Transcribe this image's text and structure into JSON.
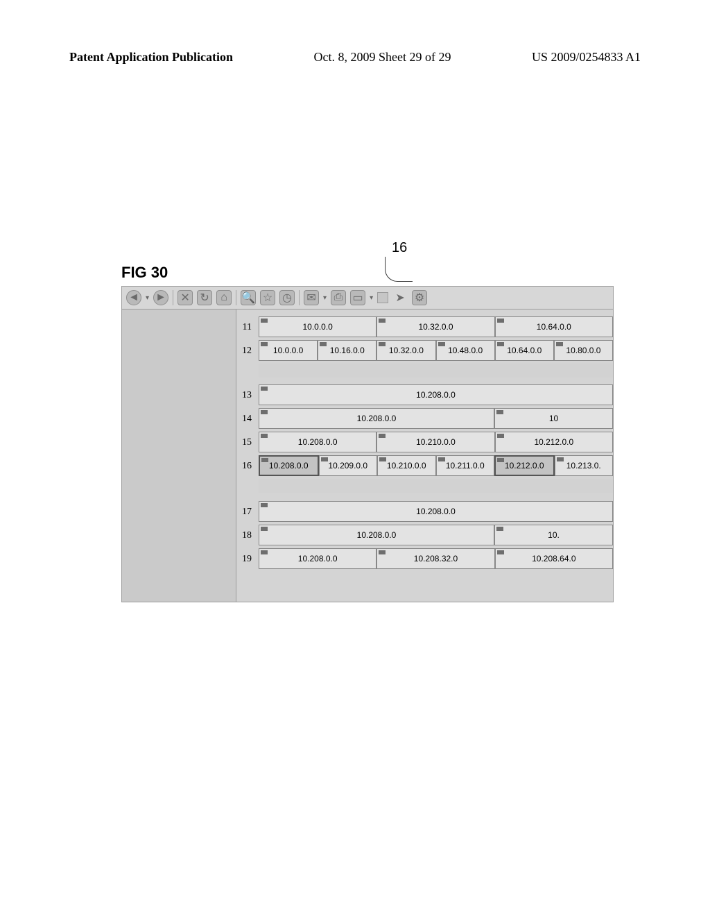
{
  "header": {
    "left": "Patent Application Publication",
    "middle": "Oct. 8, 2009  Sheet 29 of 29",
    "right": "US 2009/0254833 A1"
  },
  "figure": {
    "label": "FIG 30",
    "callout": "16"
  },
  "toolbar_icons": [
    "back-icon",
    "forward-icon",
    "stop-icon",
    "refresh-icon",
    "home-icon",
    "search-icon",
    "favorites-icon",
    "history-icon",
    "mail-icon",
    "print-icon",
    "edit-icon",
    "go-icon",
    "links-icon"
  ],
  "row_numbers": [
    "11",
    "12",
    "13",
    "14",
    "15",
    "16",
    "17",
    "18",
    "19"
  ],
  "rows": {
    "r11": [
      {
        "label": "10.0.0.0",
        "w": "w2"
      },
      {
        "label": "10.32.0.0",
        "w": "w2"
      },
      {
        "label": "10.64.0.0",
        "w": "w2"
      }
    ],
    "r12": [
      {
        "label": "10.0.0.0",
        "w": "w1"
      },
      {
        "label": "10.16.0.0",
        "w": "w1"
      },
      {
        "label": "10.32.0.0",
        "w": "w1"
      },
      {
        "label": "10.48.0.0",
        "w": "w1"
      },
      {
        "label": "10.64.0.0",
        "w": "w1"
      },
      {
        "label": "10.80.0.0",
        "w": "w1"
      }
    ],
    "r13": [
      {
        "label": "10.208.0.0",
        "w": "w6"
      }
    ],
    "r14": [
      {
        "label": "10.208.0.0",
        "w": "w4"
      },
      {
        "label": "10",
        "w": "w2"
      }
    ],
    "r15": [
      {
        "label": "10.208.0.0",
        "w": "w2"
      },
      {
        "label": "10.210.0.0",
        "w": "w2"
      },
      {
        "label": "10.212.0.0",
        "w": "w2"
      }
    ],
    "r16": [
      {
        "label": "10.208.0.0",
        "w": "w1",
        "hl": true
      },
      {
        "label": "10.209.0.0",
        "w": "w1"
      },
      {
        "label": "10.210.0.0",
        "w": "w1"
      },
      {
        "label": "10.211.0.0",
        "w": "w1"
      },
      {
        "label": "10.212.0.0",
        "w": "w1",
        "hl": true
      },
      {
        "label": "10.213.0.",
        "w": "w1"
      }
    ],
    "r17": [
      {
        "label": "10.208.0.0",
        "w": "w6"
      }
    ],
    "r18": [
      {
        "label": "10.208.0.0",
        "w": "w4"
      },
      {
        "label": "10.",
        "w": "w2"
      }
    ],
    "r19": [
      {
        "label": "10.208.0.0",
        "w": "w2"
      },
      {
        "label": "10.208.32.0",
        "w": "w2"
      },
      {
        "label": "10.208.64.0",
        "w": "w2"
      }
    ]
  },
  "layout": {
    "row_y": {
      "r11": 10,
      "r12": 44,
      "gap1": 78,
      "r13": 108,
      "r14": 142,
      "r15": 176,
      "r16": 210,
      "gap2": 244,
      "r17": 276,
      "r18": 310,
      "r19": 344
    },
    "num_y": {
      "n11": 18,
      "n12": 52,
      "n13": 116,
      "n14": 150,
      "n15": 184,
      "n16": 218,
      "n17": 284,
      "n18": 318,
      "n19": 352
    }
  },
  "colors": {
    "page_bg": "#ffffff",
    "toolbar_bg": "#d7d7d7",
    "pane_bg": "#d2d2d2",
    "cell_bg": "#e3e3e3",
    "cell_hl_bg": "#c3c3c3",
    "border": "#888888"
  }
}
